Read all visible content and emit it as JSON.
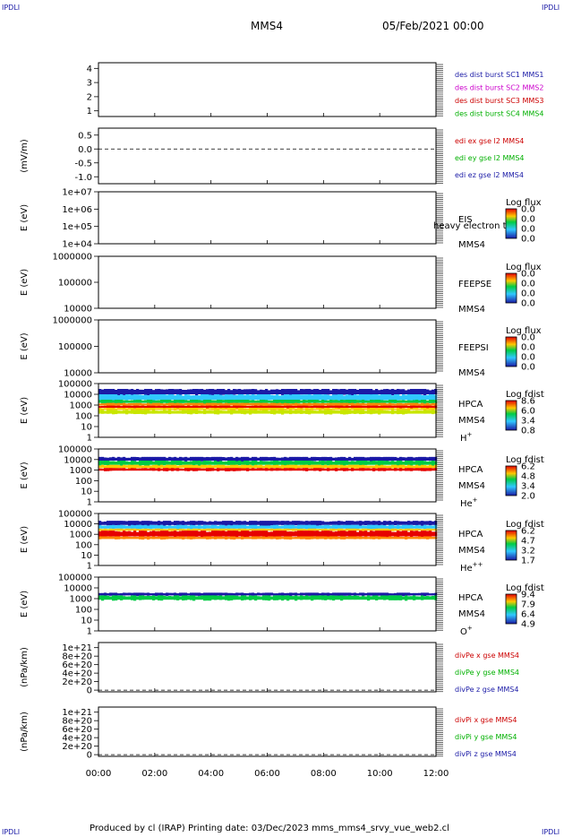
{
  "header": {
    "mission": "MMS4",
    "date": "05/Feb/2021 00:00",
    "corner_tl": "IPDLI",
    "corner_tr": "IPDLI",
    "corner_bl": "IPDLI",
    "corner_br": "IPDLI"
  },
  "footer": {
    "text": "Produced by cl (IRAP)   Printing date: 03/Dec/2023   mms_mms4_srvy_vue_web2.cl"
  },
  "colors": {
    "blue": "#1a1aa6",
    "magenta": "#cc00cc",
    "red": "#cc0000",
    "green": "#00b000"
  },
  "chart_data": {
    "type": "spectrogram-stack",
    "x_ticks": [
      "00:00",
      "02:00",
      "04:00",
      "06:00",
      "08:00",
      "10:00",
      "12:00"
    ],
    "x_range_hours": [
      0,
      12
    ],
    "panels": [
      {
        "id": "p1",
        "type": "line",
        "ylabel": "",
        "yticks": [
          "4",
          "3",
          "2",
          "1"
        ],
        "ytick_vals": [
          4,
          3,
          2,
          1
        ],
        "ylim": [
          0.6,
          4.4
        ],
        "legend": [
          {
            "text": "des dist burst SC1 MMS1",
            "color": "#1a1aa6"
          },
          {
            "text": "des dist burst SC2 MMS2",
            "color": "#cc00cc"
          },
          {
            "text": "des dist burst SC3 MMS3",
            "color": "#cc0000"
          },
          {
            "text": "des dist burst SC4 MMS4",
            "color": "#00b000"
          }
        ]
      },
      {
        "id": "p2",
        "type": "line",
        "ylabel": "(mV/m)",
        "yticks": [
          "0.5",
          "0.0",
          "-0.5",
          "-1.0"
        ],
        "ytick_vals": [
          0.5,
          0,
          -0.5,
          -1.0
        ],
        "ylim": [
          -1.25,
          0.75
        ],
        "zero_line": 0,
        "legend": [
          {
            "text": "edi ex gse l2 MMS4",
            "color": "#cc0000"
          },
          {
            "text": "edi ey gse l2 MMS4",
            "color": "#00b000"
          },
          {
            "text": "edi ez gse l2 MMS4",
            "color": "#1a1aa6"
          }
        ]
      },
      {
        "id": "p3",
        "type": "spectrogram",
        "ylabel": "E (eV)",
        "yticks": [
          "1e+07",
          "1e+06",
          "1e+05",
          "1e+04"
        ],
        "right_labels": [
          "EIS",
          "MMS4"
        ],
        "overlay_label": "heavy electron to",
        "cbar_title": "Log flux",
        "cbar_ticks": [
          "0.0",
          "0.0",
          "0.0",
          "0.0"
        ]
      },
      {
        "id": "p4",
        "type": "spectrogram",
        "ylabel": "E (eV)",
        "yticks": [
          "1000000",
          "100000",
          "10000"
        ],
        "right_labels": [
          "FEEPSE",
          "MMS4"
        ],
        "cbar_title": "Log flux",
        "cbar_ticks": [
          "0.0",
          "0.0",
          "0.0",
          "0.0"
        ]
      },
      {
        "id": "p5",
        "type": "spectrogram",
        "ylabel": "E (eV)",
        "yticks": [
          "1000000",
          "100000",
          "10000"
        ],
        "right_labels": [
          "FEEPSI",
          "MMS4"
        ],
        "cbar_title": "Log flux",
        "cbar_ticks": [
          "0.0",
          "0.0",
          "0.0",
          "0.0"
        ]
      },
      {
        "id": "p6",
        "type": "spectrogram",
        "ylabel": "E (eV)",
        "yticks": [
          "100000",
          "10000",
          "1000",
          "100",
          "10",
          "1"
        ],
        "right_labels": [
          "HPCA",
          "MMS4"
        ],
        "species": "H",
        "species_sup": "+",
        "cbar_title": "Log fdist",
        "cbar_ticks": [
          "8.6",
          "6.0",
          "3.4",
          "0.8"
        ],
        "bands": [
          {
            "from_log": 4.0,
            "to_log": 4.5,
            "color": "#1a1aa6",
            "start_h": 0.0
          },
          {
            "from_log": 3.5,
            "to_log": 4.0,
            "color": "#30c8ff",
            "start_h": 0.0
          },
          {
            "from_log": 3.2,
            "to_log": 3.5,
            "color": "#00cc44",
            "start_h": 0.0
          },
          {
            "from_log": 2.95,
            "to_log": 3.2,
            "color": "#ff8800",
            "start_h": 0.0
          },
          {
            "from_log": 2.75,
            "to_log": 2.95,
            "color": "#e60000",
            "start_h": 0.0
          },
          {
            "from_log": 2.55,
            "to_log": 2.75,
            "color": "#ffc800",
            "start_h": 0.0
          },
          {
            "from_log": 2.2,
            "to_log": 2.55,
            "color": "#c8e600",
            "start_h": 0.0
          }
        ]
      },
      {
        "id": "p7",
        "type": "spectrogram",
        "ylabel": "E (eV)",
        "yticks": [
          "100000",
          "10000",
          "1000",
          "100",
          "10",
          "1"
        ],
        "right_labels": [
          "HPCA",
          "MMS4"
        ],
        "species": "He",
        "species_sup": "+",
        "cbar_title": "Log fdist",
        "cbar_ticks": [
          "6.2",
          "4.8",
          "3.4",
          "2.0"
        ],
        "bands": [
          {
            "from_log": 3.9,
            "to_log": 4.25,
            "color": "#1a1aa6",
            "start_h": 0.0
          },
          {
            "from_log": 3.5,
            "to_log": 3.9,
            "color": "#00cc44",
            "start_h": 0.0
          },
          {
            "from_log": 3.2,
            "to_log": 3.5,
            "color": "#ffc800",
            "start_h": 0.0
          },
          {
            "from_log": 2.95,
            "to_log": 3.2,
            "color": "#e60000",
            "start_h": 0.0
          }
        ]
      },
      {
        "id": "p8",
        "type": "spectrogram",
        "ylabel": "E (eV)",
        "yticks": [
          "100000",
          "10000",
          "1000",
          "100",
          "10",
          "1"
        ],
        "right_labels": [
          "HPCA",
          "MMS4"
        ],
        "species": "He",
        "species_sup": "++",
        "cbar_title": "Log fdist",
        "cbar_ticks": [
          "6.2",
          "4.7",
          "3.2",
          "1.7"
        ],
        "bands": [
          {
            "from_log": 3.9,
            "to_log": 4.3,
            "color": "#1a1aa6",
            "start_h": 0.0
          },
          {
            "from_log": 3.55,
            "to_log": 3.9,
            "color": "#30c8ff",
            "start_h": 0.0
          },
          {
            "from_log": 3.35,
            "to_log": 3.55,
            "color": "#ffc800",
            "start_h": 0.0
          },
          {
            "from_log": 2.8,
            "to_log": 3.35,
            "color": "#e60000",
            "start_h": 0.0
          },
          {
            "from_log": 2.55,
            "to_log": 2.8,
            "color": "#ff8800",
            "start_h": 0.0
          }
        ]
      },
      {
        "id": "p9",
        "type": "spectrogram",
        "ylabel": "E (eV)",
        "yticks": [
          "100000",
          "10000",
          "1000",
          "100",
          "10",
          "1"
        ],
        "right_labels": [
          "HPCA",
          "MMS4"
        ],
        "species": "O",
        "species_sup": "+",
        "cbar_title": "Log fdist",
        "cbar_ticks": [
          "9.4",
          "7.9",
          "6.4",
          "4.9"
        ],
        "bands": [
          {
            "from_log": 3.3,
            "to_log": 3.55,
            "color": "#1a1aa6",
            "start_h": 0.0
          },
          {
            "from_log": 2.9,
            "to_log": 3.3,
            "color": "#00cc44",
            "start_h": 0.0
          }
        ]
      },
      {
        "id": "p10",
        "type": "line",
        "ylabel": "(nPa/km)",
        "yticks": [
          "1e+21",
          "8e+20",
          "6e+20",
          "4e+20",
          "2e+20",
          "0"
        ],
        "ytick_vals": [
          1.0,
          0.8,
          0.6,
          0.4,
          0.2,
          0
        ],
        "ylim": [
          -0.04,
          1.12
        ],
        "zero_line": 0,
        "legend": [
          {
            "text": "divPe x gse MMS4",
            "color": "#cc0000"
          },
          {
            "text": "divPe y gse MMS4",
            "color": "#00b000"
          },
          {
            "text": "divPe z gse MMS4",
            "color": "#1a1aa6"
          }
        ]
      },
      {
        "id": "p11",
        "type": "line",
        "ylabel": "(nPa/km)",
        "yticks": [
          "1e+21",
          "8e+20",
          "6e+20",
          "4e+20",
          "2e+20",
          "0"
        ],
        "ytick_vals": [
          1.0,
          0.8,
          0.6,
          0.4,
          0.2,
          0
        ],
        "ylim": [
          -0.04,
          1.12
        ],
        "zero_line": 0,
        "legend": [
          {
            "text": "divPi x gse MMS4",
            "color": "#cc0000"
          },
          {
            "text": "divPi y gse MMS4",
            "color": "#00b000"
          },
          {
            "text": "divPi z gse MMS4",
            "color": "#1a1aa6"
          }
        ]
      }
    ]
  }
}
